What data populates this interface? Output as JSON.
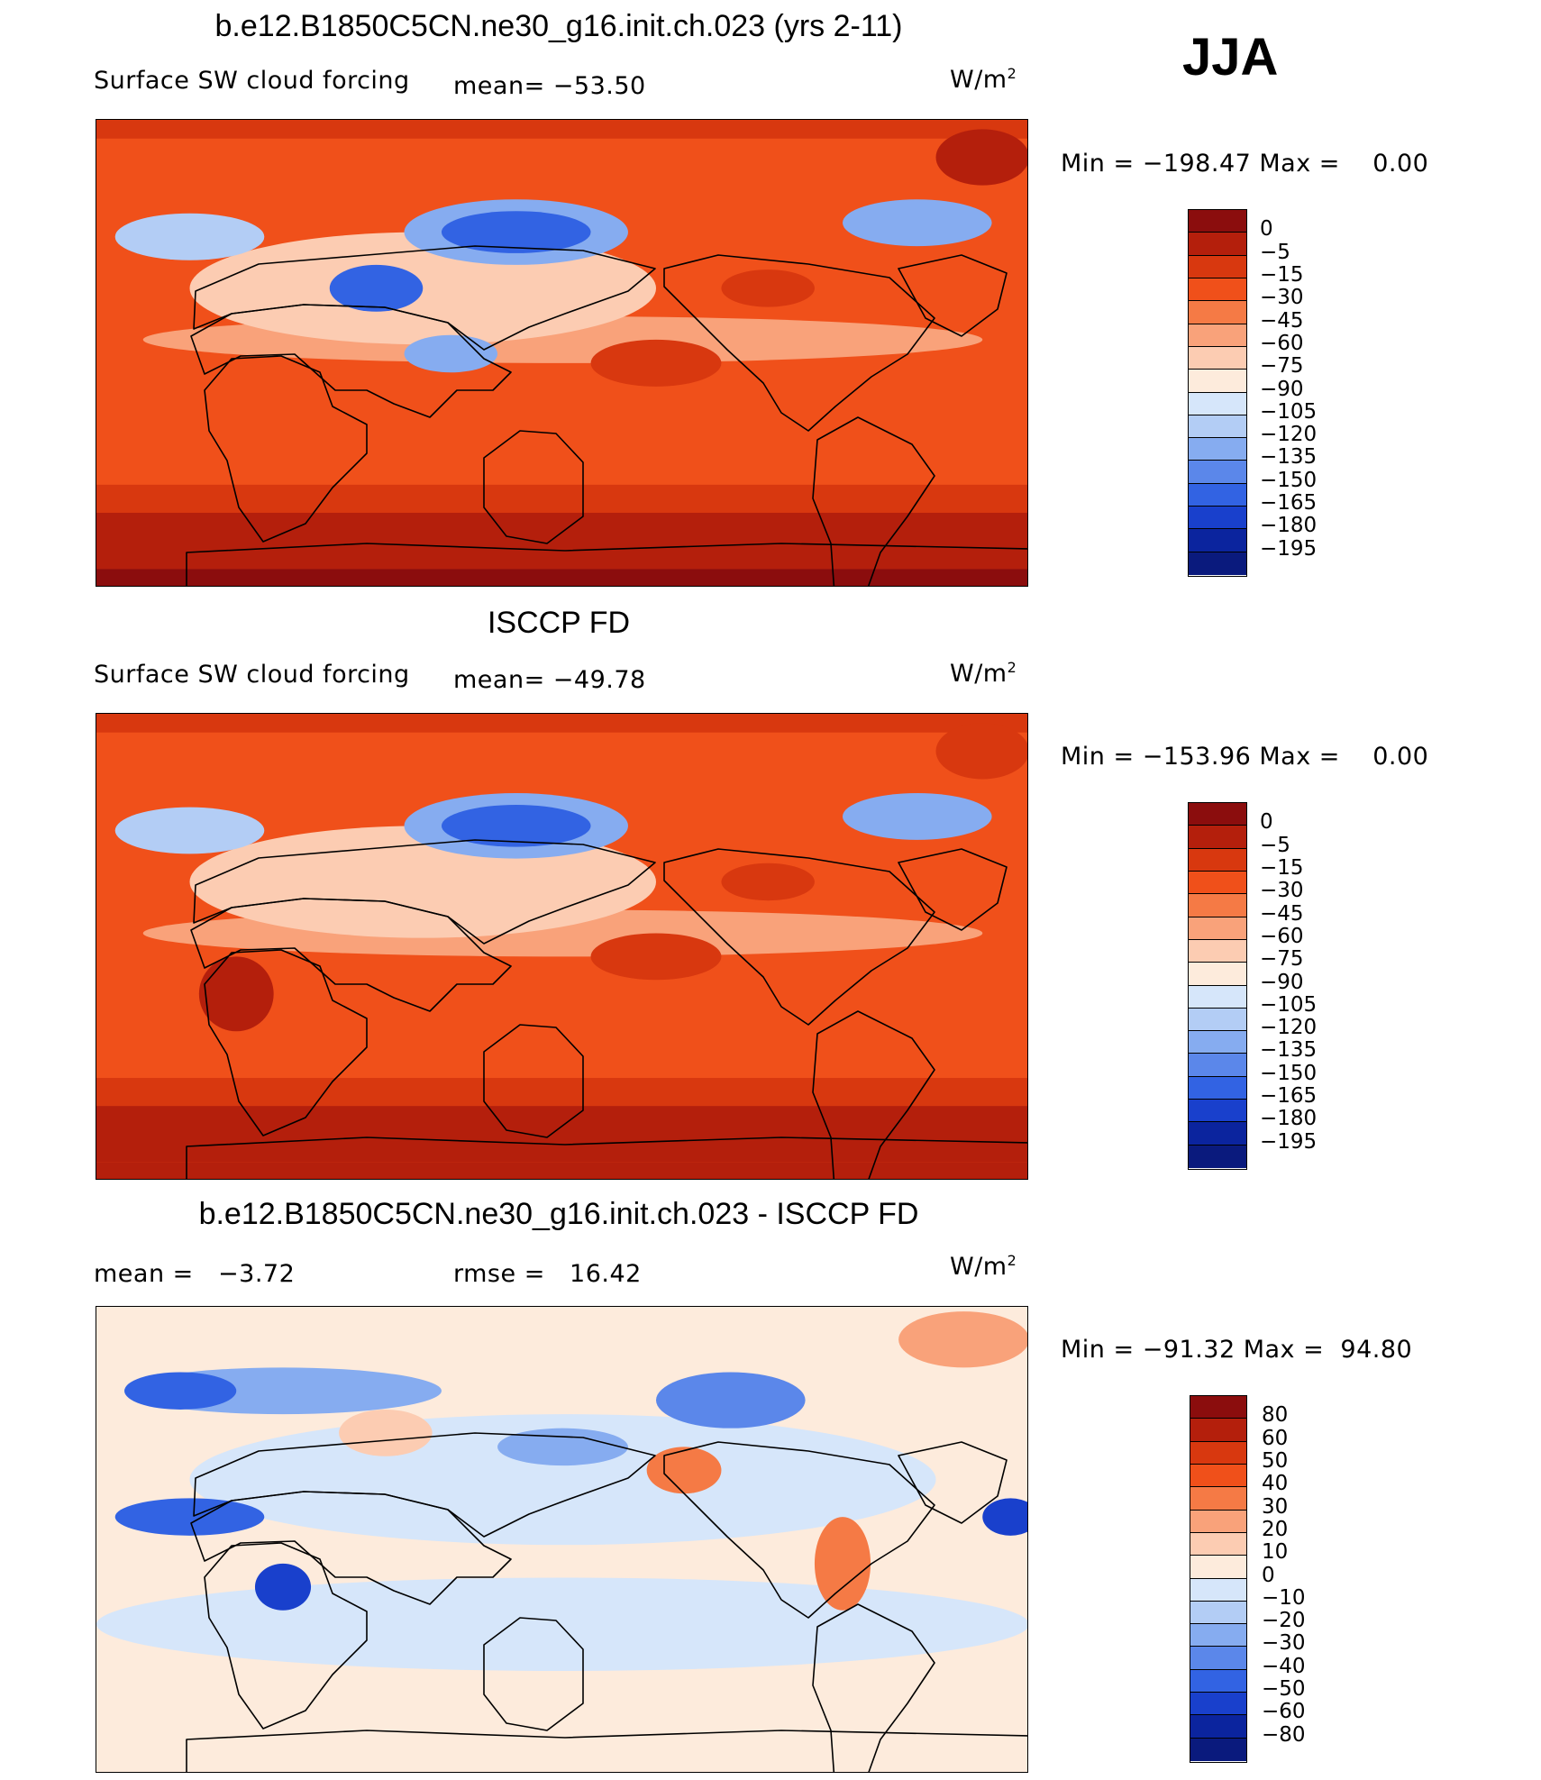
{
  "season": "JJA",
  "panels": [
    {
      "title": "b.e12.B1850C5CN.ne30_g16.init.ch.023 (yrs 2-11)",
      "left_label": "Surface SW cloud forcing",
      "mean_text": "mean= −53.50",
      "units": "W/m",
      "units_sup": "2",
      "minmax_text": "Min = −198.47 Max =    0.00",
      "colorbar": {
        "labels": [
          "0",
          "−5",
          "−15",
          "−30",
          "−45",
          "−60",
          "−75",
          "−90",
          "−105",
          "−120",
          "−135",
          "−150",
          "−165",
          "−180",
          "−195"
        ],
        "colors": [
          "#8b0d0d",
          "#b41f0c",
          "#d8380f",
          "#f0501a",
          "#f57a45",
          "#f9a27a",
          "#fcccb2",
          "#fdebdc",
          "#d6e6fa",
          "#b3cdf5",
          "#86acf0",
          "#5b87ea",
          "#3263e3",
          "#1940cc",
          "#0b249e",
          "#0a1a7d"
        ]
      }
    },
    {
      "title": "ISCCP FD",
      "left_label": "Surface SW cloud forcing",
      "mean_text": "mean= −49.78",
      "units": "W/m",
      "units_sup": "2",
      "minmax_text": "Min = −153.96 Max =    0.00",
      "colorbar": {
        "labels": [
          "0",
          "−5",
          "−15",
          "−30",
          "−45",
          "−60",
          "−75",
          "−90",
          "−105",
          "−120",
          "−135",
          "−150",
          "−165",
          "−180",
          "−195"
        ],
        "colors": [
          "#8b0d0d",
          "#b41f0c",
          "#d8380f",
          "#f0501a",
          "#f57a45",
          "#f9a27a",
          "#fcccb2",
          "#fdebdc",
          "#d6e6fa",
          "#b3cdf5",
          "#86acf0",
          "#5b87ea",
          "#3263e3",
          "#1940cc",
          "#0b249e",
          "#0a1a7d"
        ]
      }
    },
    {
      "title": "b.e12.B1850C5CN.ne30_g16.init.ch.023 - ISCCP FD",
      "left_label": "mean =   −3.72",
      "mean_text": "rmse =   16.42",
      "units": "W/m",
      "units_sup": "2",
      "minmax_text": "Min = −91.32 Max =  94.80",
      "colorbar": {
        "labels": [
          "80",
          "60",
          "50",
          "40",
          "30",
          "20",
          "10",
          "0",
          "−10",
          "−20",
          "−30",
          "−40",
          "−50",
          "−60",
          "−80"
        ],
        "colors": [
          "#8b0d0d",
          "#b41f0c",
          "#d8380f",
          "#f0501a",
          "#f57a45",
          "#f9a27a",
          "#fcccb2",
          "#fdebdc",
          "#d6e6fa",
          "#b3cdf5",
          "#86acf0",
          "#5b87ea",
          "#3263e3",
          "#1940cc",
          "#0b249e",
          "#0a1a7d"
        ]
      }
    }
  ]
}
